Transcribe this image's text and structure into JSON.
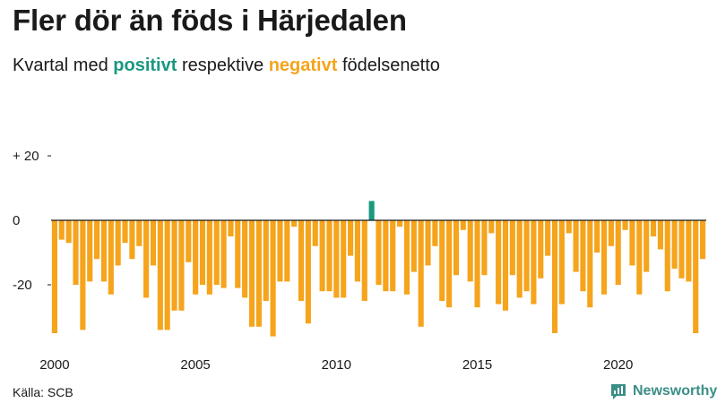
{
  "header": {
    "title": "Fler dör än föds i Härjedalen",
    "subtitle_prefix": "Kvartal med",
    "subtitle_positive": "positivt",
    "subtitle_middle": "respektive",
    "subtitle_negative": "negativt",
    "subtitle_suffix": "födelsenetto"
  },
  "footer": {
    "source": "Källa: SCB",
    "brand": "Newsworthy"
  },
  "colors": {
    "positive": "#1a9880",
    "negative": "#f5a41c",
    "brand": "#3a8f86"
  },
  "chart_data": {
    "type": "bar",
    "title": "Fler dör än föds i Härjedalen",
    "subtitle": "Kvartal med positivt respektive negativt födelsenetto",
    "ylim": [
      -36,
      20
    ],
    "y_ticks": [
      {
        "value": 20,
        "label": "+ 20"
      },
      {
        "value": 0,
        "label": "0"
      },
      {
        "value": -20,
        "label": "-20"
      }
    ],
    "x_ticks": [
      {
        "year": 2000,
        "label": "2000"
      },
      {
        "year": 2005,
        "label": "2005"
      },
      {
        "year": 2010,
        "label": "2010"
      },
      {
        "year": 2015,
        "label": "2015"
      },
      {
        "year": 2020,
        "label": "2020"
      }
    ],
    "start_year": 2000,
    "grid": false,
    "values": [
      -35,
      -6,
      -7,
      -20,
      -34,
      -19,
      -12,
      -19,
      -23,
      -14,
      -7,
      -12,
      -8,
      -24,
      -14,
      -34,
      -34,
      -28,
      -28,
      -13,
      -23,
      -20,
      -23,
      -20,
      -21,
      -5,
      -21,
      -24,
      -33,
      -33,
      -25,
      -36,
      -19,
      -19,
      -2,
      -25,
      -32,
      -8,
      -22,
      -22,
      -24,
      -24,
      -11,
      -19,
      -25,
      6,
      -20,
      -22,
      -22,
      -2,
      -23,
      -16,
      -33,
      -14,
      -8,
      -25,
      -27,
      -17,
      -3,
      -19,
      -27,
      -17,
      -4,
      -26,
      -28,
      -17,
      -24,
      -22,
      -26,
      -18,
      -11,
      -35,
      -26,
      -4,
      -16,
      -22,
      -27,
      -10,
      -23,
      -8,
      -20,
      -3,
      -14,
      -23,
      -16,
      -5,
      -9,
      -22,
      -15,
      -18,
      -19,
      -35,
      -12
    ]
  }
}
